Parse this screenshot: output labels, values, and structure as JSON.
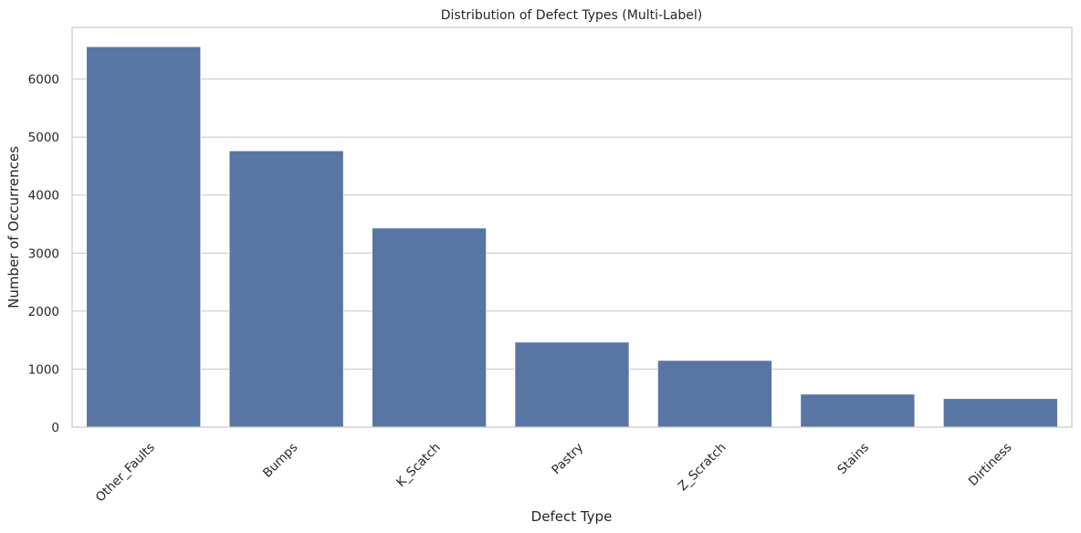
{
  "chart_data": {
    "type": "bar",
    "title": "Distribution of Defect Types (Multi-Label)",
    "xlabel": "Defect Type",
    "ylabel": "Number of Occurrences",
    "categories": [
      "Other_Faults",
      "Bumps",
      "K_Scatch",
      "Pastry",
      "Z_Scratch",
      "Stains",
      "Dirtiness"
    ],
    "values": [
      6558,
      4763,
      3432,
      1466,
      1150,
      569,
      493
    ],
    "ylim": [
      0,
      6890
    ],
    "yticks": [
      0,
      1000,
      2000,
      3000,
      4000,
      5000,
      6000
    ],
    "ytick_labels": [
      "0",
      "1000",
      "2000",
      "3000",
      "4000",
      "5000",
      "6000"
    ],
    "x_tick_rotation": 45,
    "grid": "horizontal",
    "bar_color": "#5975a4",
    "grid_color": "#cccccc"
  }
}
